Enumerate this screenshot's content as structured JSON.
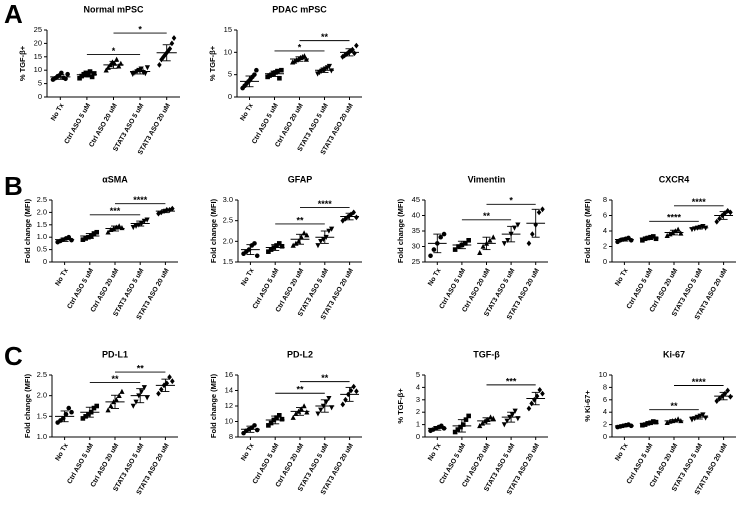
{
  "panel_labels": [
    "A",
    "B",
    "C"
  ],
  "markers": [
    "circle",
    "square",
    "triangle",
    "triangle-down",
    "diamond"
  ],
  "chart_data": [
    {
      "type": "dotplot",
      "title": "Normal mPSC",
      "ylabel": "% TGF-β+",
      "categories": [
        "No Tx",
        "Ctrl ASO 5 uM",
        "Ctrl ASO 20 uM",
        "STAT3 ASO 5 uM",
        "STAT3 ASO 20 uM"
      ],
      "ylim": [
        0,
        25
      ],
      "yticks": [
        0,
        5,
        10,
        15,
        20,
        25
      ],
      "groups": [
        {
          "points": [
            6.5,
            7,
            7.5,
            8,
            9,
            7.2,
            6.8,
            8.5
          ],
          "mean": 7.5,
          "sd": 0.9
        },
        {
          "points": [
            7,
            7.8,
            8.5,
            9,
            8.2,
            9.5,
            7.5,
            8.8
          ],
          "mean": 8.3,
          "sd": 0.8
        },
        {
          "points": [
            10,
            11,
            12,
            13,
            12.5,
            14,
            11.5,
            12.5
          ],
          "mean": 12,
          "sd": 1.3
        },
        {
          "points": [
            8.5,
            9,
            9.5,
            10,
            10.5,
            9.2,
            8.8,
            11
          ],
          "mean": 9.5,
          "sd": 0.9
        },
        {
          "points": [
            12,
            14,
            15,
            16,
            17,
            18,
            20,
            22
          ],
          "mean": 16.5,
          "sd": 3
        }
      ],
      "comparisons": [
        {
          "groups": [
            1,
            3
          ],
          "label": "*"
        },
        {
          "groups": [
            2,
            4
          ],
          "label": "*"
        }
      ]
    },
    {
      "type": "dotplot",
      "title": "PDAC mPSC",
      "ylabel": "% TGF-β+",
      "categories": [
        "No Tx",
        "Ctrl ASO 5 uM",
        "Ctrl ASO 20 uM",
        "STAT3 ASO 5 uM",
        "STAT3 ASO 20 uM"
      ],
      "ylim": [
        0,
        15
      ],
      "yticks": [
        0,
        5,
        10,
        15
      ],
      "groups": [
        {
          "points": [
            2,
            2.5,
            3,
            3.5,
            4,
            4.5,
            5,
            6
          ],
          "mean": 3.5,
          "sd": 1.2
        },
        {
          "points": [
            4.5,
            4.8,
            5,
            5.2,
            5.5,
            5.8,
            4.2,
            6
          ],
          "mean": 5.2,
          "sd": 0.6
        },
        {
          "points": [
            7.8,
            8,
            8.3,
            8.5,
            8.8,
            9,
            9.2,
            8.4
          ],
          "mean": 8.5,
          "sd": 0.5
        },
        {
          "points": [
            5.2,
            5.5,
            5.8,
            6,
            6.3,
            6.6,
            6.9,
            5.9
          ],
          "mean": 6,
          "sd": 0.5
        },
        {
          "points": [
            9,
            9.3,
            9.6,
            10,
            10.3,
            10.6,
            9.8,
            11.5
          ],
          "mean": 10,
          "sd": 0.8
        }
      ],
      "comparisons": [
        {
          "groups": [
            1,
            3
          ],
          "label": "*"
        },
        {
          "groups": [
            2,
            4
          ],
          "label": "**"
        }
      ]
    },
    {
      "type": "dotplot",
      "title": "αSMA",
      "ylabel": "Fold change (MFI)",
      "categories": [
        "No Tx",
        "Ctrl ASO 5 uM",
        "Ctrl ASO 20 uM",
        "STAT3 ASO 5 uM",
        "STAT3 ASO 20 uM"
      ],
      "ylim": [
        0,
        2.5
      ],
      "yticks": [
        0,
        0.5,
        {
          "value": 1,
          "label": "1.0"
        },
        1.5,
        {
          "value": 2,
          "label": "2.0"
        },
        2.5
      ],
      "groups": [
        {
          "points": [
            0.8,
            0.85,
            0.9,
            0.95,
            1.0,
            0.88
          ],
          "mean": 0.9,
          "sd": 0.07
        },
        {
          "points": [
            0.9,
            0.95,
            1.0,
            1.05,
            1.15,
            1.2
          ],
          "mean": 1.05,
          "sd": 0.1
        },
        {
          "points": [
            1.2,
            1.3,
            1.35,
            1.4,
            1.45,
            1.38
          ],
          "mean": 1.35,
          "sd": 0.1
        },
        {
          "points": [
            1.4,
            1.45,
            1.5,
            1.55,
            1.65,
            1.7
          ],
          "mean": 1.55,
          "sd": 0.1
        },
        {
          "points": [
            1.95,
            2.0,
            2.05,
            2.1,
            2.1,
            2.15
          ],
          "mean": 2.05,
          "sd": 0.06
        }
      ],
      "comparisons": [
        {
          "groups": [
            1,
            3
          ],
          "label": "***"
        },
        {
          "groups": [
            2,
            4
          ],
          "label": "****"
        }
      ]
    },
    {
      "type": "dotplot",
      "title": "GFAP",
      "ylabel": "Fold change (MFI)",
      "categories": [
        "No Tx",
        "Ctrl ASO 5 uM",
        "Ctrl ASO 20 uM",
        "STAT3 ASO 5 uM",
        "STAT3 ASO 20 uM"
      ],
      "ylim": [
        1.5,
        3
      ],
      "yticks": [
        1.5,
        {
          "value": 2,
          "label": "2.0"
        },
        2.5,
        {
          "value": 3,
          "label": "3.0"
        }
      ],
      "groups": [
        {
          "points": [
            1.7,
            1.75,
            1.8,
            1.9,
            1.95,
            1.65
          ],
          "mean": 1.8,
          "sd": 0.12
        },
        {
          "points": [
            1.75,
            1.8,
            1.85,
            1.9,
            1.95,
            1.88
          ],
          "mean": 1.85,
          "sd": 0.07
        },
        {
          "points": [
            1.9,
            1.95,
            2.0,
            2.1,
            2.2,
            2.15
          ],
          "mean": 2.05,
          "sd": 0.12
        },
        {
          "points": [
            1.9,
            2.0,
            2.05,
            2.1,
            2.25,
            2.3
          ],
          "mean": 2.1,
          "sd": 0.15
        },
        {
          "points": [
            2.5,
            2.55,
            2.6,
            2.65,
            2.7,
            2.58
          ],
          "mean": 2.6,
          "sd": 0.08
        }
      ],
      "comparisons": [
        {
          "groups": [
            1,
            3
          ],
          "label": "**"
        },
        {
          "groups": [
            2,
            4
          ],
          "label": "****"
        }
      ]
    },
    {
      "type": "dotplot",
      "title": "Vimentin",
      "ylabel": "Fold change (MFI)",
      "categories": [
        "No Tx",
        "Ctrl ASO 5 uM",
        "Ctrl ASO 20 uM",
        "STAT3 ASO 5 uM",
        "STAT3 ASO 20 uM"
      ],
      "ylim": [
        25,
        45
      ],
      "yticks": [
        25,
        30,
        35,
        40,
        45
      ],
      "groups": [
        {
          "points": [
            27,
            29,
            31,
            33,
            34
          ],
          "mean": 31,
          "sd": 3
        },
        {
          "points": [
            29,
            30,
            30.5,
            31,
            32
          ],
          "mean": 30.5,
          "sd": 1.2
        },
        {
          "points": [
            28,
            30,
            31,
            32,
            33
          ],
          "mean": 31,
          "sd": 2
        },
        {
          "points": [
            31,
            32,
            34,
            36,
            37
          ],
          "mean": 34,
          "sd": 2.5
        },
        {
          "points": [
            31,
            34,
            37,
            41,
            42
          ],
          "mean": 37.5,
          "sd": 4.5
        }
      ],
      "comparisons": [
        {
          "groups": [
            1,
            3
          ],
          "label": "**"
        },
        {
          "groups": [
            2,
            4
          ],
          "label": "*"
        }
      ]
    },
    {
      "type": "dotplot",
      "title": "CXCR4",
      "ylabel": "Fold change (MFI)",
      "categories": [
        "No Tx",
        "Ctrl ASO 5 uM",
        "Ctrl ASO 20 uM",
        "STAT3 ASO 5 uM",
        "STAT3 ASO 20 uM"
      ],
      "ylim": [
        0,
        8
      ],
      "yticks": [
        0,
        2,
        4,
        6,
        8
      ],
      "groups": [
        {
          "points": [
            2.6,
            2.8,
            2.9,
            3.0,
            3.1,
            2.8
          ],
          "mean": 2.9,
          "sd": 0.2
        },
        {
          "points": [
            2.8,
            3.0,
            3.1,
            3.2,
            3.3,
            3.0
          ],
          "mean": 3.1,
          "sd": 0.2
        },
        {
          "points": [
            3.4,
            3.6,
            3.8,
            4.0,
            4.2,
            3.7
          ],
          "mean": 3.8,
          "sd": 0.3
        },
        {
          "points": [
            4.2,
            4.3,
            4.4,
            4.5,
            4.6,
            4.4
          ],
          "mean": 4.4,
          "sd": 0.15
        },
        {
          "points": [
            5.2,
            5.6,
            6.0,
            6.3,
            6.6,
            6.4
          ],
          "mean": 6,
          "sd": 0.5
        }
      ],
      "comparisons": [
        {
          "groups": [
            1,
            3
          ],
          "label": "****"
        },
        {
          "groups": [
            2,
            4
          ],
          "label": "****"
        }
      ]
    },
    {
      "type": "dotplot",
      "title": "PD-L1",
      "ylabel": "Fold change (MFI)",
      "categories": [
        "No Tx",
        "Ctrl ASO 5 uM",
        "Ctrl ASO 20 uM",
        "STAT3 ASO 5 uM",
        "STAT3 ASO 20 uM"
      ],
      "ylim": [
        1,
        2.5
      ],
      "yticks": [
        {
          "value": 1,
          "label": "1.0"
        },
        1.5,
        {
          "value": 2,
          "label": "2.0"
        },
        2.5
      ],
      "groups": [
        {
          "points": [
            1.35,
            1.4,
            1.45,
            1.55,
            1.7,
            1.6
          ],
          "mean": 1.5,
          "sd": 0.13
        },
        {
          "points": [
            1.45,
            1.5,
            1.55,
            1.6,
            1.7,
            1.75
          ],
          "mean": 1.6,
          "sd": 0.12
        },
        {
          "points": [
            1.65,
            1.75,
            1.85,
            1.9,
            2.0,
            2.1
          ],
          "mean": 1.85,
          "sd": 0.16
        },
        {
          "points": [
            1.75,
            1.85,
            2.0,
            2.1,
            2.2,
            1.95
          ],
          "mean": 2.0,
          "sd": 0.17
        },
        {
          "points": [
            2.05,
            2.15,
            2.25,
            2.3,
            2.45,
            2.35
          ],
          "mean": 2.25,
          "sd": 0.15
        }
      ],
      "comparisons": [
        {
          "groups": [
            1,
            3
          ],
          "label": "**"
        },
        {
          "groups": [
            2,
            4
          ],
          "label": "**"
        }
      ]
    },
    {
      "type": "dotplot",
      "title": "PD-L2",
      "ylabel": "Fold change (MFI)",
      "categories": [
        "No Tx",
        "Ctrl ASO 5 uM",
        "Ctrl ASO 20 uM",
        "STAT3 ASO 5 uM",
        "STAT3 ASO 20 uM"
      ],
      "ylim": [
        8,
        16
      ],
      "yticks": [
        8,
        10,
        12,
        14,
        16
      ],
      "groups": [
        {
          "points": [
            8.5,
            8.8,
            9,
            9.2,
            9.5,
            8.9
          ],
          "mean": 9,
          "sd": 0.4
        },
        {
          "points": [
            9.5,
            9.8,
            10.2,
            10.5,
            10.8,
            10.3
          ],
          "mean": 10.2,
          "sd": 0.5
        },
        {
          "points": [
            10.5,
            11,
            11.3,
            11.6,
            12,
            11.2
          ],
          "mean": 11.3,
          "sd": 0.5
        },
        {
          "points": [
            11,
            11.5,
            12,
            12.5,
            13,
            11.8
          ],
          "mean": 12,
          "sd": 0.8
        },
        {
          "points": [
            12.2,
            12.8,
            13.5,
            14,
            14.5,
            13.9
          ],
          "mean": 13.5,
          "sd": 0.9
        }
      ],
      "comparisons": [
        {
          "groups": [
            1,
            3
          ],
          "label": "**"
        },
        {
          "groups": [
            2,
            4
          ],
          "label": "**"
        }
      ]
    },
    {
      "type": "dotplot",
      "title": "TGF-β",
      "ylabel": "% TGF-β+",
      "categories": [
        "No Tx",
        "Ctrl ASO 5 uM",
        "Ctrl ASO 20 uM",
        "STAT3 ASO 5 uM",
        "STAT3 ASO 20 uM"
      ],
      "ylim": [
        0,
        5
      ],
      "yticks": [
        0,
        1,
        2,
        3,
        4,
        5
      ],
      "groups": [
        {
          "points": [
            0.5,
            0.6,
            0.7,
            0.8,
            0.9,
            0.7
          ],
          "mean": 0.7,
          "sd": 0.15
        },
        {
          "points": [
            0.4,
            0.6,
            0.8,
            1.0,
            1.4,
            1.7
          ],
          "mean": 0.9,
          "sd": 0.5
        },
        {
          "points": [
            0.9,
            1.1,
            1.3,
            1.4,
            1.6,
            1.5
          ],
          "mean": 1.3,
          "sd": 0.25
        },
        {
          "points": [
            1.0,
            1.3,
            1.6,
            1.8,
            2.1,
            1.5
          ],
          "mean": 1.6,
          "sd": 0.4
        },
        {
          "points": [
            2.3,
            2.7,
            3.0,
            3.3,
            3.8,
            3.5
          ],
          "mean": 3.1,
          "sd": 0.5
        }
      ],
      "comparisons": [
        {
          "groups": [
            2,
            4
          ],
          "label": "***"
        }
      ]
    },
    {
      "type": "dotplot",
      "title": "Ki-67",
      "ylabel": "% Ki-67+",
      "categories": [
        "No Tx",
        "Ctrl ASO 5 uM",
        "Ctrl ASO 20 uM",
        "STAT3 ASO 5 uM",
        "STAT3 ASO 20 uM"
      ],
      "ylim": [
        0,
        10
      ],
      "yticks": [
        0,
        2,
        4,
        6,
        8,
        10
      ],
      "groups": [
        {
          "points": [
            1.6,
            1.7,
            1.8,
            1.9,
            2.0,
            1.8
          ],
          "mean": 1.8,
          "sd": 0.15
        },
        {
          "points": [
            1.9,
            2.0,
            2.2,
            2.3,
            2.5,
            2.4
          ],
          "mean": 2.2,
          "sd": 0.2
        },
        {
          "points": [
            2.3,
            2.5,
            2.6,
            2.7,
            2.9,
            2.6
          ],
          "mean": 2.6,
          "sd": 0.2
        },
        {
          "points": [
            2.8,
            3.0,
            3.2,
            3.4,
            3.6,
            3.1
          ],
          "mean": 3.2,
          "sd": 0.3
        },
        {
          "points": [
            5.8,
            6.2,
            6.6,
            7.0,
            7.5,
            6.5
          ],
          "mean": 6.6,
          "sd": 0.6
        }
      ],
      "comparisons": [
        {
          "groups": [
            1,
            3
          ],
          "label": "**"
        },
        {
          "groups": [
            2,
            4
          ],
          "label": "****"
        }
      ]
    }
  ]
}
